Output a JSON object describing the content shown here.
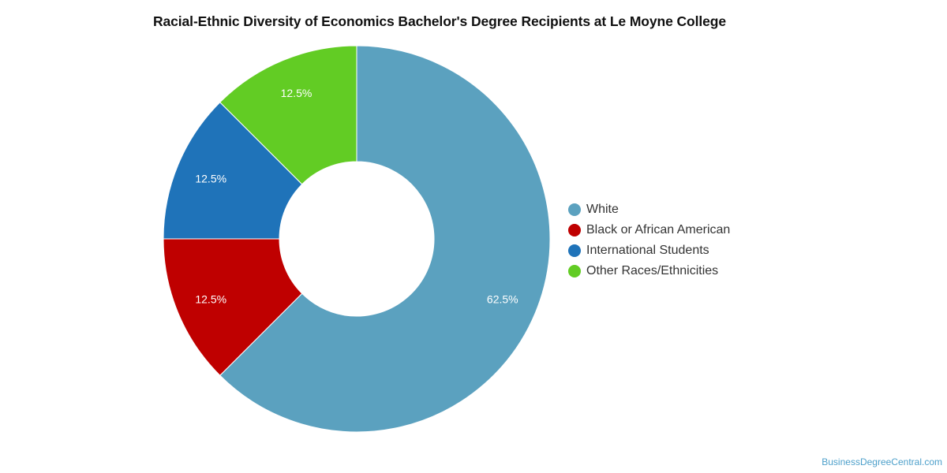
{
  "chart_data": {
    "type": "pie",
    "variant": "donut",
    "title": "Racial-Ethnic Diversity of Economics Bachelor's Degree Recipients at Le Moyne College",
    "slices": [
      {
        "label": "White",
        "value": 62.5,
        "display": "62.5%",
        "color": "#5ba1bf"
      },
      {
        "label": "Black or African American",
        "value": 12.5,
        "display": "12.5%",
        "color": "#bf0000"
      },
      {
        "label": "International Students",
        "value": 12.5,
        "display": "12.5%",
        "color": "#1f73b9"
      },
      {
        "label": "Other Races/Ethnicities",
        "value": 12.5,
        "display": "12.5%",
        "color": "#62cc24"
      }
    ],
    "legend_position": "right"
  },
  "footer": {
    "credit": "BusinessDegreeCentral.com"
  }
}
